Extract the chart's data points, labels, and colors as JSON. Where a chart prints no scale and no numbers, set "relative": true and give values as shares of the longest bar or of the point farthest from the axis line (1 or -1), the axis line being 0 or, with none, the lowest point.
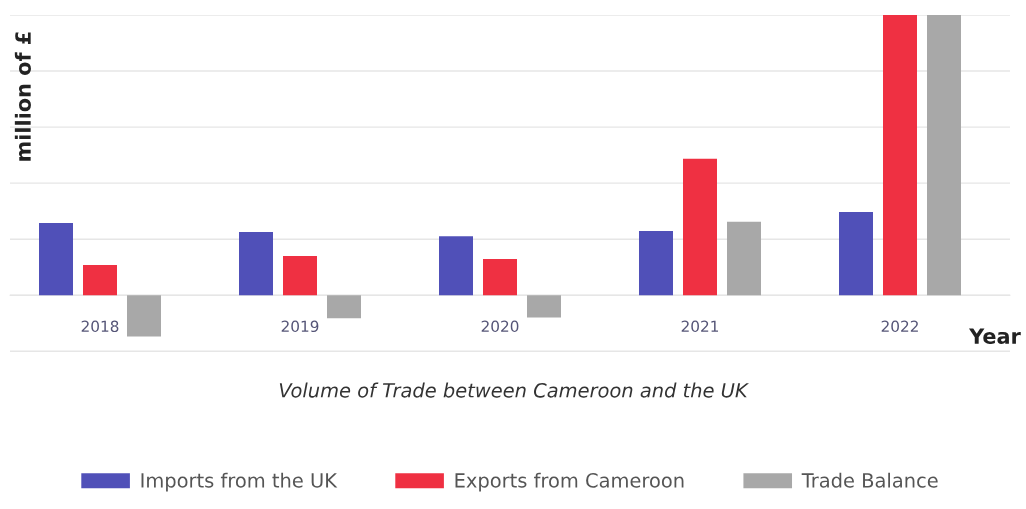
{
  "chart_data": {
    "type": "bar",
    "relative": true,
    "title": "Volume of Trade between Cameroon and the UK",
    "xlabel": "Year",
    "ylabel": "million of £",
    "categories": [
      "2018",
      "2019",
      "2020",
      "2021",
      "2022"
    ],
    "series": [
      {
        "name": "Imports from the UK",
        "color": "#5050b8",
        "values": [
          0.258,
          0.226,
          0.211,
          0.229,
          0.297
        ]
      },
      {
        "name": "Exports from Cameroon",
        "color": "#ef3042",
        "values": [
          0.108,
          0.14,
          0.129,
          0.487,
          1
        ]
      },
      {
        "name": "Trade Balance",
        "color": "#a8a8a8",
        "values": [
          -0.147,
          -0.082,
          -0.079,
          0.262,
          1
        ]
      }
    ],
    "grid": "y",
    "legend": "bottom"
  }
}
